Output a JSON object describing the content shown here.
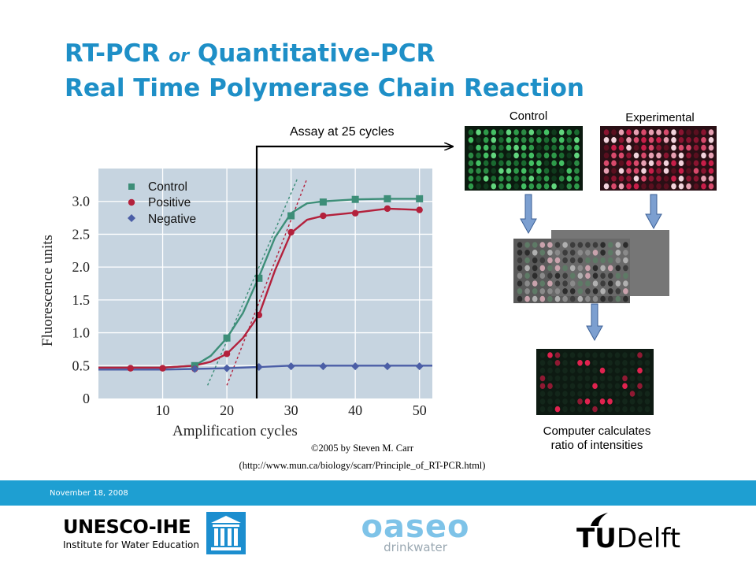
{
  "slide": {
    "title_line1_a": "RT-PCR",
    "title_line1_or": "or",
    "title_line1_b": "Quantitative-PCR",
    "title_line2": "Real Time Polymerase Chain Reaction",
    "credit_line1": "©2005 by  Steven M. Carr",
    "credit_line2": "(http://www.mun.ca/biology/scarr/Principle_of_RT-PCR.html)",
    "footer_date": "November 18, 2008"
  },
  "diagram": {
    "assay_label": "Assay at 25 cycles",
    "control_label": "Control",
    "experimental_label": "Experimental",
    "result_label_line1": "Computer calculates",
    "result_label_line2": "ratio of intensities"
  },
  "logos": {
    "unesco_name": "UNESCO-IHE",
    "unesco_sub": "Institute for Water Education",
    "oaseo_name": "oaseo",
    "oaseo_sub": "drinkwater",
    "tudelft_tu": "TU",
    "tudelft_delft": "Delft"
  },
  "colors": {
    "title": "#1e8fc7",
    "footer_bar": "#1e9fd2",
    "plot_bg": "#c6d4e0",
    "control": "#3d8e78",
    "positive": "#b3213c",
    "negative": "#4b5ea6"
  },
  "chart_data": {
    "type": "line",
    "xlabel": "Amplification cycles",
    "ylabel": "Fluorescence units",
    "xlim": [
      0,
      52
    ],
    "ylim": [
      0,
      3.5
    ],
    "x_ticks": [
      10,
      20,
      30,
      40,
      50
    ],
    "y_ticks": [
      0,
      0.5,
      1.0,
      1.5,
      2.0,
      2.5,
      3.0
    ],
    "y_tick_labels": [
      "0",
      "0.5",
      "1.0",
      "1.5",
      "2.0",
      "2.5",
      "3.0"
    ],
    "grid": true,
    "legend_position": "top-left",
    "threshold_cycle": 25,
    "series": [
      {
        "name": "Control",
        "marker": "square",
        "line_x": [
          0,
          5,
          10,
          15,
          17.5,
          20,
          22.5,
          25,
          27.5,
          30,
          32.5,
          35,
          40,
          45,
          50
        ],
        "line_y": [
          0.47,
          0.47,
          0.47,
          0.5,
          0.65,
          0.92,
          1.3,
          1.85,
          2.45,
          2.82,
          2.97,
          3.0,
          3.03,
          3.04,
          3.04
        ],
        "marker_x": [
          15,
          20,
          25,
          30,
          35,
          40,
          45,
          50
        ],
        "marker_y": [
          0.5,
          0.92,
          1.83,
          2.78,
          2.99,
          3.03,
          3.04,
          3.04
        ]
      },
      {
        "name": "Positive",
        "marker": "circle",
        "line_x": [
          0,
          5,
          10,
          15,
          17.5,
          20,
          22.5,
          25,
          27.5,
          30,
          32.5,
          35,
          40,
          45,
          50
        ],
        "line_y": [
          0.47,
          0.47,
          0.47,
          0.5,
          0.56,
          0.68,
          0.92,
          1.27,
          1.95,
          2.52,
          2.72,
          2.78,
          2.83,
          2.89,
          2.87
        ],
        "marker_x": [
          5,
          10,
          15,
          20,
          25,
          30,
          35,
          40,
          45,
          50
        ],
        "marker_y": [
          0.46,
          0.46,
          0.45,
          0.68,
          1.27,
          2.53,
          2.78,
          2.82,
          2.89,
          2.87
        ]
      },
      {
        "name": "Negative",
        "marker": "diamond",
        "line_x": [
          0,
          5,
          10,
          15,
          20,
          25,
          30,
          35,
          40,
          45,
          50,
          52
        ],
        "line_y": [
          0.44,
          0.44,
          0.44,
          0.45,
          0.46,
          0.48,
          0.5,
          0.5,
          0.5,
          0.5,
          0.5,
          0.5
        ],
        "marker_x": [
          15,
          20,
          25,
          30,
          35,
          40,
          45,
          50
        ],
        "marker_y": [
          0.45,
          0.46,
          0.48,
          0.49,
          0.49,
          0.49,
          0.49,
          0.49
        ]
      }
    ],
    "tangent_lines": [
      {
        "series": "Control",
        "x": [
          17,
          31
        ],
        "y": [
          0.2,
          3.35
        ]
      },
      {
        "series": "Positive",
        "x": [
          20,
          32.5
        ],
        "y": [
          0.2,
          3.35
        ]
      }
    ]
  }
}
